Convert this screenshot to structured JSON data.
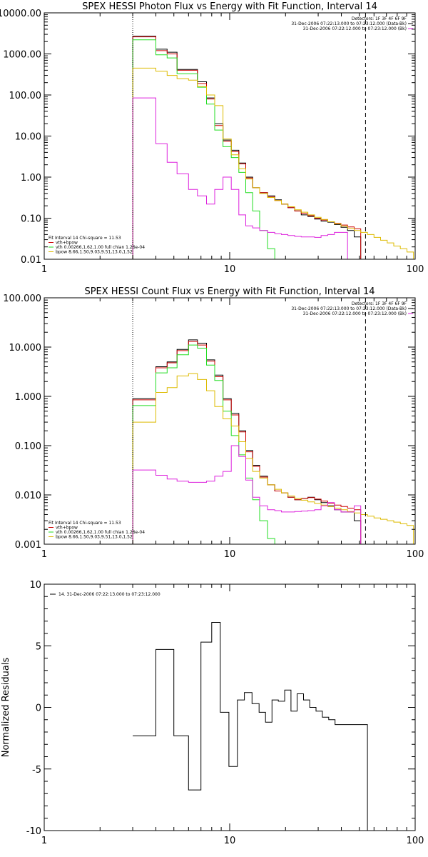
{
  "colors": {
    "background": "#ffffff",
    "axes": "#000000",
    "data": "#000000",
    "total": "#cc0000",
    "vth": "#22dd22",
    "bpow": "#ddbb00",
    "bkg": "#dd22dd"
  },
  "chart_data": [
    {
      "type": "line",
      "title": "SPEX HESSI Photon Flux vs Energy with Fit Function, Interval 14",
      "xscale": "log",
      "yscale": "log",
      "xlim": [
        1,
        100
      ],
      "ylim": [
        0.01,
        10000
      ],
      "xticks": [
        "1",
        "10",
        "100"
      ],
      "yticks": [
        "0.01",
        "0.10",
        "1.00",
        "10.00",
        "100.00",
        "1000.00",
        "10000.00"
      ],
      "vlines": [
        {
          "x": 3,
          "style": "dotted"
        },
        {
          "x": 54,
          "style": "dashed"
        }
      ],
      "legend_top_right": [
        "Detectors: 1F 3F 4F 6F 9F",
        "31-Dec-2006 07:22:13.000 to 07:23:12.000 (Data-Bk)",
        "31-Dec-2006 07:22:12.000 to 07:23:12.000 (Bk)"
      ],
      "legend_bottom_left": [
        "Fit Interval 14   Chi-square = 11.53",
        "vth+bpow",
        "vth 0.00266,1.62,1.00  full chian 1.26e-04",
        "bpow 8.66,1.50,9.03,9.51,13.0,1.52"
      ],
      "x_edges": [
        3,
        3.4,
        4,
        4.6,
        5.2,
        6,
        6.7,
        7.5,
        8.3,
        9.2,
        10.2,
        11.2,
        12.2,
        13.3,
        14.5,
        16,
        17.5,
        19,
        20.6,
        22.4,
        24.3,
        26.4,
        28.7,
        31.1,
        33.8,
        36.7,
        39.8,
        43.2,
        46.9,
        50.9,
        55.3,
        60,
        65.1,
        70.7,
        76.7,
        83.2,
        90.3,
        98
      ],
      "series": [
        {
          "name": "data",
          "color": "#000000",
          "values": [
            2700,
            2700,
            1300,
            1100,
            420,
            420,
            210,
            85,
            20,
            8,
            4.5,
            2.2,
            1,
            0.55,
            0.42,
            0.35,
            0.28,
            0.22,
            0.18,
            0.15,
            0.12,
            0.11,
            0.095,
            0.085,
            0.08,
            0.07,
            0.06,
            0.05,
            0.035
          ]
        },
        {
          "name": "vth+bpow",
          "color": "#cc0000",
          "values": [
            2600,
            2600,
            1200,
            1000,
            400,
            400,
            190,
            80,
            18,
            7.5,
            4.2,
            2.1,
            0.95,
            0.55,
            0.42,
            0.33,
            0.27,
            0.22,
            0.18,
            0.15,
            0.13,
            0.115,
            0.1,
            0.09,
            0.082,
            0.075,
            0.068,
            0.061,
            0.055
          ]
        },
        {
          "name": "vth",
          "color": "#22dd22",
          "values": [
            2200,
            2200,
            950,
            800,
            330,
            330,
            155,
            60,
            14,
            5.5,
            3,
            1.3,
            0.42,
            0.15,
            0.05,
            0.018,
            0.008
          ]
        },
        {
          "name": "bpow",
          "color": "#ddbb00",
          "values": [
            450,
            450,
            380,
            300,
            250,
            230,
            160,
            100,
            55,
            8.5,
            3.5,
            1.6,
            0.9,
            0.55,
            0.4,
            0.32,
            0.27,
            0.22,
            0.19,
            0.16,
            0.14,
            0.12,
            0.105,
            0.093,
            0.082,
            0.073,
            0.064,
            0.056,
            0.05,
            0.045,
            0.04,
            0.034,
            0.029,
            0.025,
            0.021,
            0.018,
            0.015
          ]
        },
        {
          "name": "bkg",
          "color": "#dd22dd",
          "values": [
            85,
            85,
            6.5,
            2.3,
            1.2,
            0.5,
            0.35,
            0.22,
            0.5,
            1,
            0.5,
            0.12,
            0.065,
            0.058,
            0.05,
            0.045,
            0.042,
            0.04,
            0.038,
            0.036,
            0.035,
            0.035,
            0.034,
            0.038,
            0.04,
            0.045,
            0.045
          ]
        }
      ]
    },
    {
      "type": "line",
      "title": "SPEX HESSI Count Flux vs Energy with Fit Function, Interval 14",
      "xscale": "log",
      "yscale": "log",
      "xlim": [
        1,
        100
      ],
      "ylim": [
        0.001,
        100
      ],
      "xticks": [
        "1",
        "10",
        "100"
      ],
      "yticks": [
        "0.001",
        "0.010",
        "0.100",
        "1.000",
        "10.000",
        "100.000"
      ],
      "vlines": [
        {
          "x": 3,
          "style": "dotted"
        },
        {
          "x": 54,
          "style": "dashed"
        }
      ],
      "legend_top_right": [
        "Detectors: 1F 3F 4F 6F 9F",
        "31-Dec-2006 07:22:13.000 to 07:23:12.000 (Data-Bk)",
        "31-Dec-2006 07:22:12.000 to 07:23:12.000 (Bk)"
      ],
      "legend_bottom_left": [
        "Fit Interval 14   Chi-square = 11.53",
        "vth+bpow",
        "vth 0.00266,1.62,1.00  full chian 1.26e-04",
        "bpow 8.66,1.50,9.03,9.51,13.0,1.52"
      ],
      "x_edges": [
        3,
        3.4,
        4,
        4.6,
        5.2,
        6,
        6.7,
        7.5,
        8.3,
        9.2,
        10.2,
        11.2,
        12.2,
        13.3,
        14.5,
        16,
        17.5,
        19,
        20.6,
        22.4,
        24.3,
        26.4,
        28.7,
        31.1,
        33.8,
        36.7,
        39.8,
        43.2,
        46.9,
        50.9,
        55.3,
        60,
        65.1,
        70.7,
        76.7,
        83.2,
        90.3,
        98
      ],
      "series": [
        {
          "name": "data",
          "color": "#000000",
          "values": [
            0.9,
            0.9,
            4,
            5,
            9,
            14,
            12,
            5.5,
            2.7,
            0.9,
            0.45,
            0.2,
            0.08,
            0.04,
            0.024,
            0.016,
            0.012,
            0.011,
            0.009,
            0.008,
            0.0085,
            0.009,
            0.008,
            0.007,
            0.006,
            0.005,
            0.0045,
            0.0045,
            0.003
          ]
        },
        {
          "name": "vth+bpow",
          "color": "#cc0000",
          "values": [
            0.85,
            0.85,
            3.8,
            4.8,
            8.5,
            13,
            11,
            5.2,
            2.5,
            0.85,
            0.42,
            0.19,
            0.075,
            0.038,
            0.023,
            0.016,
            0.012,
            0.011,
            0.009,
            0.008,
            0.0085,
            0.0088,
            0.0082,
            0.0075,
            0.0068,
            0.0062,
            0.0058,
            0.0054,
            0.005
          ]
        },
        {
          "name": "vth",
          "color": "#22dd22",
          "values": [
            0.65,
            0.65,
            3,
            3.8,
            7,
            11,
            9.5,
            4.3,
            2.1,
            0.5,
            0.16,
            0.065,
            0.022,
            0.008,
            0.003,
            0.0013
          ]
        },
        {
          "name": "bpow",
          "color": "#ddbb00",
          "values": [
            0.3,
            0.3,
            1.2,
            1.5,
            2.6,
            2.9,
            2.2,
            1.3,
            0.62,
            0.35,
            0.25,
            0.12,
            0.055,
            0.03,
            0.022,
            0.016,
            0.013,
            0.011,
            0.0095,
            0.0085,
            0.0078,
            0.0072,
            0.0067,
            0.0062,
            0.0058,
            0.0054,
            0.005,
            0.0046,
            0.0043,
            0.004,
            0.0037,
            0.0034,
            0.0032,
            0.003,
            0.0028,
            0.0026,
            0.0024
          ]
        },
        {
          "name": "bkg",
          "color": "#dd22dd",
          "values": [
            0.032,
            0.032,
            0.025,
            0.021,
            0.019,
            0.018,
            0.018,
            0.019,
            0.024,
            0.03,
            0.1,
            0.06,
            0.02,
            0.009,
            0.006,
            0.005,
            0.0048,
            0.0045,
            0.0045,
            0.0046,
            0.0047,
            0.0048,
            0.005,
            0.006,
            0.007,
            0.005,
            0.0045,
            0.0045,
            0.006
          ]
        }
      ]
    },
    {
      "type": "line",
      "title": "",
      "xscale": "log",
      "yscale": "linear",
      "xlim": [
        1,
        100
      ],
      "ylim": [
        -10,
        10
      ],
      "ylabel": "Normalized Residuals",
      "xticks": [
        "1",
        "10",
        "100"
      ],
      "yticks": [
        "-10",
        "-5",
        "0",
        "5",
        "10"
      ],
      "legend_top_left": [
        "14. 31-Dec-2006 07:22:13.000 to 07:23:12.000"
      ],
      "x_edges": [
        3,
        4,
        5,
        6,
        7,
        8,
        8.9,
        9.9,
        11,
        12,
        13.2,
        14.4,
        15.6,
        16.9,
        18.3,
        19.8,
        21.4,
        23.1,
        25,
        27,
        29.2,
        31.6,
        34.2,
        37,
        40,
        43.3,
        46.9,
        50.9,
        55.3
      ],
      "series": [
        {
          "name": "residuals",
          "color": "#000000",
          "values": [
            -2.3,
            4.7,
            -2.3,
            -6.7,
            5.3,
            6.9,
            -0.4,
            -4.8,
            0.6,
            1.2,
            0.3,
            -0.4,
            -1.2,
            0.6,
            0.5,
            1.4,
            -0.3,
            1.1,
            0.6,
            0,
            -0.3,
            -0.8,
            -1.0,
            -1.4,
            -1.4,
            -1.4,
            -1.4,
            -1.4
          ]
        }
      ]
    }
  ]
}
